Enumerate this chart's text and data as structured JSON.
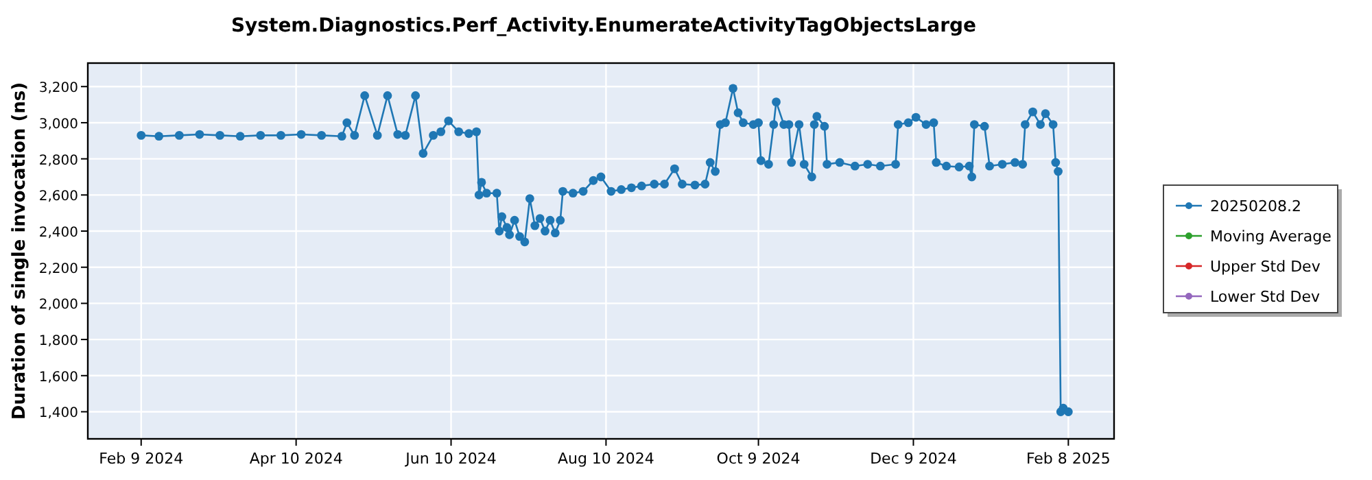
{
  "chart_data": {
    "type": "line",
    "title": "System.Diagnostics.Perf_Activity.EnumerateActivityTagObjectsLarge",
    "ylabel": "Duration of single invocation (ns)",
    "x": [
      "2024-02-09",
      "2024-02-16",
      "2024-02-24",
      "2024-03-03",
      "2024-03-11",
      "2024-03-19",
      "2024-03-27",
      "2024-04-04",
      "2024-04-12",
      "2024-04-20",
      "2024-04-28",
      "2024-04-30",
      "2024-05-03",
      "2024-05-07",
      "2024-05-12",
      "2024-05-16",
      "2024-05-20",
      "2024-05-23",
      "2024-05-27",
      "2024-05-30",
      "2024-06-03",
      "2024-06-06",
      "2024-06-09",
      "2024-06-13",
      "2024-06-17",
      "2024-06-20",
      "2024-06-21",
      "2024-06-22",
      "2024-06-24",
      "2024-06-28",
      "2024-06-29",
      "2024-06-30",
      "2024-07-02",
      "2024-07-03",
      "2024-07-05",
      "2024-07-07",
      "2024-07-09",
      "2024-07-11",
      "2024-07-13",
      "2024-07-15",
      "2024-07-17",
      "2024-07-19",
      "2024-07-21",
      "2024-07-23",
      "2024-07-24",
      "2024-07-28",
      "2024-08-01",
      "2024-08-05",
      "2024-08-08",
      "2024-08-12",
      "2024-08-16",
      "2024-08-20",
      "2024-08-24",
      "2024-08-29",
      "2024-09-02",
      "2024-09-06",
      "2024-09-09",
      "2024-09-14",
      "2024-09-18",
      "2024-09-20",
      "2024-09-22",
      "2024-09-24",
      "2024-09-26",
      "2024-09-29",
      "2024-10-01",
      "2024-10-03",
      "2024-10-07",
      "2024-10-09",
      "2024-10-10",
      "2024-10-13",
      "2024-10-15",
      "2024-10-16",
      "2024-10-19",
      "2024-10-21",
      "2024-10-22",
      "2024-10-25",
      "2024-10-27",
      "2024-10-30",
      "2024-10-31",
      "2024-11-01",
      "2024-11-04",
      "2024-11-05",
      "2024-11-10",
      "2024-11-16",
      "2024-11-21",
      "2024-11-26",
      "2024-12-02",
      "2024-12-03",
      "2024-12-07",
      "2024-12-10",
      "2024-12-14",
      "2024-12-17",
      "2024-12-18",
      "2024-12-22",
      "2024-12-27",
      "2024-12-31",
      "2025-01-01",
      "2025-01-02",
      "2025-01-06",
      "2025-01-08",
      "2025-01-13",
      "2025-01-18",
      "2025-01-21",
      "2025-01-22",
      "2025-01-25",
      "2025-01-28",
      "2025-01-30",
      "2025-02-02",
      "2025-02-03",
      "2025-02-04",
      "2025-02-05",
      "2025-02-06",
      "2025-02-08"
    ],
    "series": [
      {
        "name": "20250208.2",
        "color": "#1f77b4",
        "values": [
          2930,
          2925,
          2930,
          2935,
          2930,
          2925,
          2930,
          2930,
          2935,
          2930,
          2925,
          3000,
          2930,
          3150,
          2930,
          3150,
          2935,
          2930,
          3150,
          2830,
          2930,
          2950,
          3010,
          2950,
          2940,
          2950,
          2600,
          2670,
          2610,
          2610,
          2400,
          2480,
          2420,
          2380,
          2460,
          2370,
          2340,
          2580,
          2430,
          2470,
          2400,
          2460,
          2390,
          2460,
          2620,
          2610,
          2620,
          2680,
          2700,
          2620,
          2630,
          2640,
          2650,
          2660,
          2660,
          2745,
          2660,
          2655,
          2660,
          2780,
          2730,
          2990,
          3000,
          3190,
          3055,
          3000,
          2990,
          3000,
          2790,
          2770,
          2990,
          3115,
          2990,
          2990,
          2780,
          2990,
          2770,
          2700,
          2990,
          3035,
          2980,
          2770,
          2780,
          2760,
          2770,
          2760,
          2770,
          2990,
          3000,
          3030,
          2990,
          3000,
          2780,
          2760,
          2755,
          2760,
          2700,
          2990,
          2980,
          2760,
          2770,
          2780,
          2770,
          2990,
          3060,
          2990,
          3050,
          2990,
          2780,
          2730,
          1400,
          1420,
          1400
        ]
      },
      {
        "name": "Moving Average",
        "color": "#2ca02c",
        "values": [
          null,
          null,
          null,
          null,
          null,
          null,
          null,
          null,
          null,
          null,
          null,
          null,
          null,
          null,
          null,
          null,
          null,
          null,
          null,
          null,
          null,
          null,
          null,
          null,
          null,
          null,
          null,
          null,
          null,
          null,
          null,
          null,
          null,
          null,
          null,
          null,
          null,
          null,
          null,
          null,
          null,
          null,
          null,
          null,
          null,
          null,
          null,
          null,
          null,
          null,
          null,
          null,
          null,
          null,
          null,
          null,
          null,
          null,
          null,
          null,
          null,
          null,
          null,
          null,
          null,
          null,
          null,
          null,
          null,
          null,
          null,
          null,
          null,
          null,
          null,
          null,
          null,
          null,
          null,
          null,
          null,
          null,
          null,
          null,
          null,
          null,
          null,
          null,
          null,
          null,
          null,
          null,
          null,
          null,
          null,
          null,
          null,
          null,
          null,
          null,
          null,
          null,
          null,
          null,
          null,
          null,
          null,
          null,
          null,
          null,
          null,
          null,
          null
        ]
      },
      {
        "name": "Upper Std Dev",
        "color": "#d62728",
        "values": [
          null,
          null,
          null,
          null,
          null,
          null,
          null,
          null,
          null,
          null,
          null,
          null,
          null,
          null,
          null,
          null,
          null,
          null,
          null,
          null,
          null,
          null,
          null,
          null,
          null,
          null,
          null,
          null,
          null,
          null,
          null,
          null,
          null,
          null,
          null,
          null,
          null,
          null,
          null,
          null,
          null,
          null,
          null,
          null,
          null,
          null,
          null,
          null,
          null,
          null,
          null,
          null,
          null,
          null,
          null,
          null,
          null,
          null,
          null,
          null,
          null,
          null,
          null,
          null,
          null,
          null,
          null,
          null,
          null,
          null,
          null,
          null,
          null,
          null,
          null,
          null,
          null,
          null,
          null,
          null,
          null,
          null,
          null,
          null,
          null,
          null,
          null,
          null,
          null,
          null,
          null,
          null,
          null,
          null,
          null,
          null,
          null,
          null,
          null,
          null,
          null,
          null,
          null,
          null,
          null,
          null,
          null,
          null,
          null,
          null,
          null,
          null,
          null
        ]
      },
      {
        "name": "Lower Std Dev",
        "color": "#9467bd",
        "values": [
          null,
          null,
          null,
          null,
          null,
          null,
          null,
          null,
          null,
          null,
          null,
          null,
          null,
          null,
          null,
          null,
          null,
          null,
          null,
          null,
          null,
          null,
          null,
          null,
          null,
          null,
          null,
          null,
          null,
          null,
          null,
          null,
          null,
          null,
          null,
          null,
          null,
          null,
          null,
          null,
          null,
          null,
          null,
          null,
          null,
          null,
          null,
          null,
          null,
          null,
          null,
          null,
          null,
          null,
          null,
          null,
          null,
          null,
          null,
          null,
          null,
          null,
          null,
          null,
          null,
          null,
          null,
          null,
          null,
          null,
          null,
          null,
          null,
          null,
          null,
          null,
          null,
          null,
          null,
          null,
          null,
          null,
          null,
          null,
          null,
          null,
          null,
          null,
          null,
          null,
          null,
          null,
          null,
          null,
          null,
          null,
          null,
          null,
          null,
          null,
          null,
          null,
          null,
          null,
          null,
          null,
          null,
          null,
          null,
          null,
          null,
          null,
          null
        ]
      }
    ],
    "xlim": [
      "2024-01-19",
      "2025-02-26"
    ],
    "xticks": [
      {
        "value": "2024-02-09",
        "label": "Feb 9 2024"
      },
      {
        "value": "2024-04-10",
        "label": "Apr 10 2024"
      },
      {
        "value": "2024-06-10",
        "label": "Jun 10 2024"
      },
      {
        "value": "2024-08-10",
        "label": "Aug 10 2024"
      },
      {
        "value": "2024-10-09",
        "label": "Oct 9 2024"
      },
      {
        "value": "2024-12-09",
        "label": "Dec 9 2024"
      },
      {
        "value": "2025-02-08",
        "label": "Feb 8 2025"
      }
    ],
    "ylim": [
      1250,
      3330
    ],
    "yticks": [
      {
        "value": 1400,
        "label": "1,400"
      },
      {
        "value": 1600,
        "label": "1,600"
      },
      {
        "value": 1800,
        "label": "1,800"
      },
      {
        "value": 2000,
        "label": "2,000"
      },
      {
        "value": 2200,
        "label": "2,200"
      },
      {
        "value": 2400,
        "label": "2,400"
      },
      {
        "value": 2600,
        "label": "2,600"
      },
      {
        "value": 2800,
        "label": "2,800"
      },
      {
        "value": 3000,
        "label": "3,000"
      },
      {
        "value": 3200,
        "label": "3,200"
      }
    ],
    "grid": true,
    "legend": "right",
    "marker": "circle",
    "line_style": "solid"
  }
}
